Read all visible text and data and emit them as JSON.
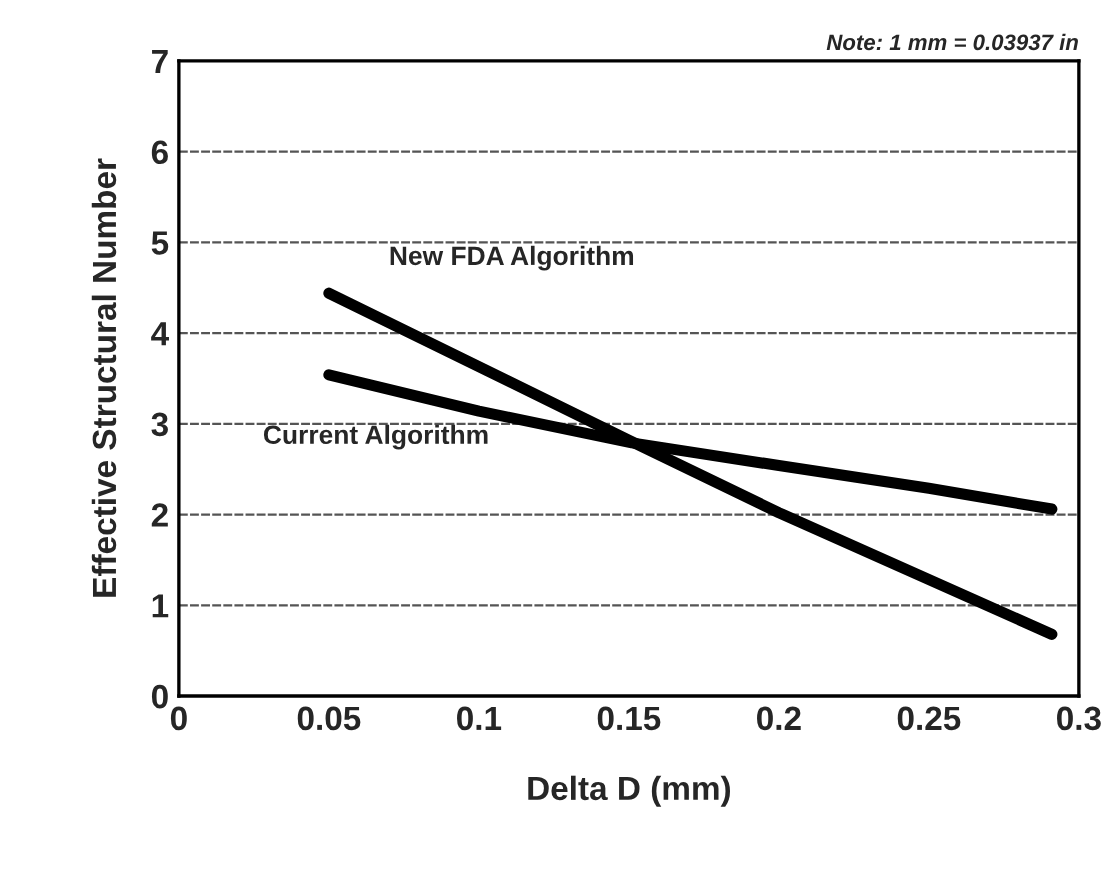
{
  "chart_data": {
    "type": "line",
    "xlabel": "Delta D (mm)",
    "ylabel": "Effective Structural Number",
    "annotations": [
      "Note: 1 mm = 0.03937 in"
    ],
    "series": [
      {
        "name": "New FDA Algorithm",
        "color": "#000000",
        "x": [
          0.05,
          0.15,
          0.2,
          0.291
        ],
        "values": [
          4.44,
          2.82,
          2.02,
          0.68
        ]
      },
      {
        "name": "Current Algorithm",
        "color": "#000000",
        "x": [
          0.05,
          0.1,
          0.151,
          0.2,
          0.25,
          0.291
        ],
        "values": [
          3.54,
          3.14,
          2.79,
          2.54,
          2.29,
          2.06
        ]
      }
    ],
    "xlim": [
      0,
      0.3
    ],
    "xticks": [
      0,
      0.05,
      0.1,
      0.15,
      0.2,
      0.25,
      0.3
    ],
    "ylim": [
      0,
      7
    ],
    "yticks": [
      0,
      1,
      2,
      3,
      4,
      5,
      6,
      7
    ],
    "grid": "y",
    "legend": false,
    "marker": "none",
    "line_style": "solid"
  }
}
